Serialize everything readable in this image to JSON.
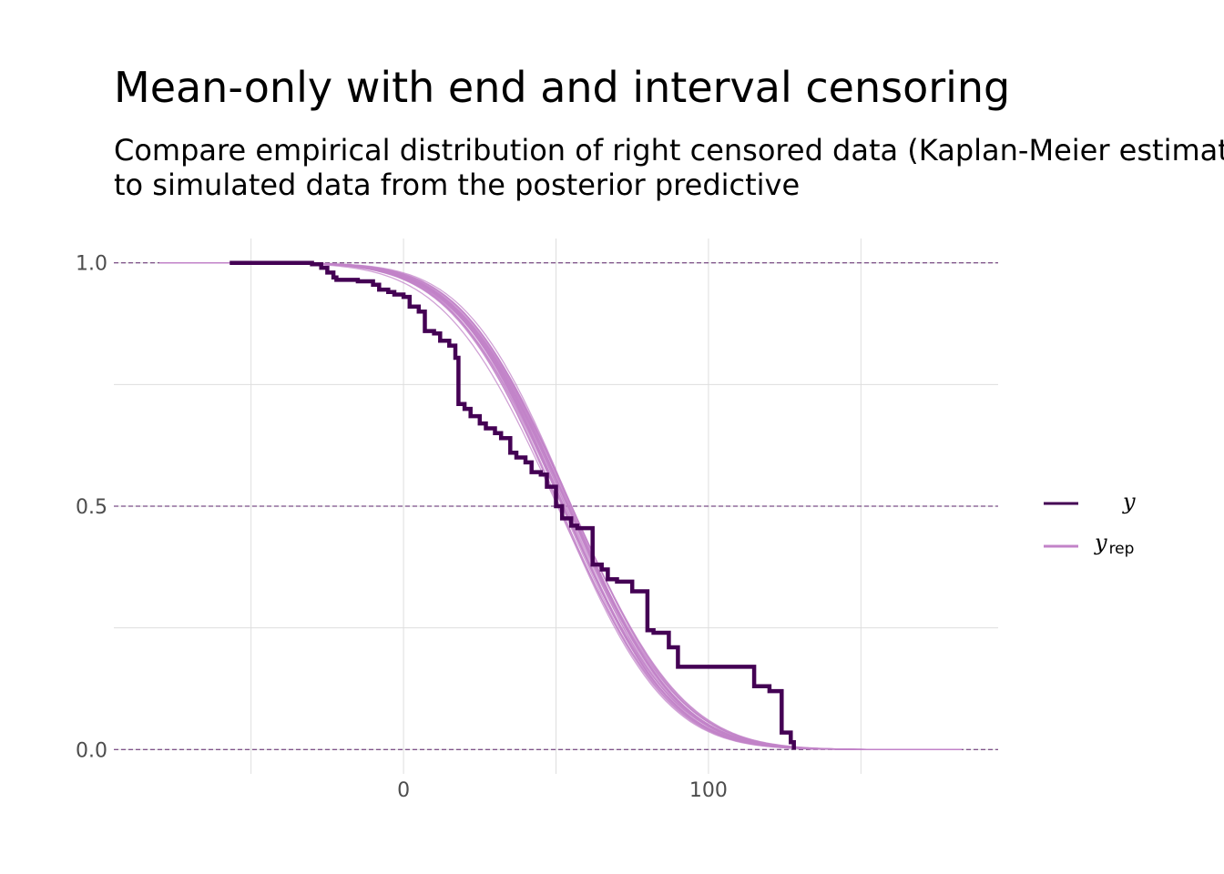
{
  "chart_data": {
    "type": "line",
    "title": "Mean-only with end and interval censoring",
    "subtitle_lines": [
      "Compare empirical distribution of right censored data (Kaplan-Meier estimate)",
      "to simulated data from the posterior predictive"
    ],
    "xlim": [
      -95,
      195
    ],
    "ylim": [
      -0.05,
      1.05
    ],
    "x_ticks": [
      0,
      100
    ],
    "x_tick_labels": [
      "0",
      "100"
    ],
    "x_minor_ticks": [
      -50,
      50,
      150
    ],
    "y_ticks": [
      0,
      0.5,
      1
    ],
    "y_tick_labels": [
      "0.0",
      "0.5",
      "1.0"
    ],
    "y_minor_ticks": [
      0.25,
      0.75
    ],
    "reference_lines_y": [
      0,
      0.5,
      1
    ],
    "grid": true,
    "legend": {
      "placement": "right",
      "y_label": "y",
      "yrep_label": "y",
      "yrep_subscript": "rep"
    },
    "colors": {
      "y": "#440154",
      "yrep": "#c283c8",
      "reference": "#440154",
      "grid": "#dedede"
    },
    "yrep_params": {
      "n_draws": 30,
      "mu": 53,
      "sd": 28,
      "mu_jitter": 2.5,
      "sd_jitter": 1.2,
      "x_range": [
        -80,
        183
      ]
    },
    "y_step": {
      "x": [
        -57,
        -30,
        -27,
        -25,
        -23,
        -22,
        -15,
        -10,
        -8,
        -5,
        -3,
        0,
        2,
        5,
        7,
        10,
        12,
        15,
        17,
        18,
        20,
        22,
        25,
        27,
        30,
        32,
        35,
        37,
        40,
        42,
        45,
        47,
        50,
        52,
        55,
        57,
        60,
        62,
        65,
        67,
        70,
        72,
        75,
        80,
        82,
        85,
        87,
        90,
        110,
        115,
        120,
        124,
        127,
        128
      ],
      "y": [
        1.0,
        0.997,
        0.99,
        0.98,
        0.97,
        0.965,
        0.962,
        0.955,
        0.945,
        0.94,
        0.935,
        0.93,
        0.91,
        0.9,
        0.86,
        0.855,
        0.84,
        0.83,
        0.805,
        0.71,
        0.7,
        0.685,
        0.67,
        0.66,
        0.65,
        0.64,
        0.61,
        0.6,
        0.59,
        0.57,
        0.565,
        0.54,
        0.5,
        0.475,
        0.46,
        0.455,
        0.455,
        0.38,
        0.37,
        0.35,
        0.345,
        0.345,
        0.325,
        0.245,
        0.24,
        0.24,
        0.21,
        0.17,
        0.17,
        0.13,
        0.12,
        0.035,
        0.015,
        0.0
      ]
    }
  }
}
